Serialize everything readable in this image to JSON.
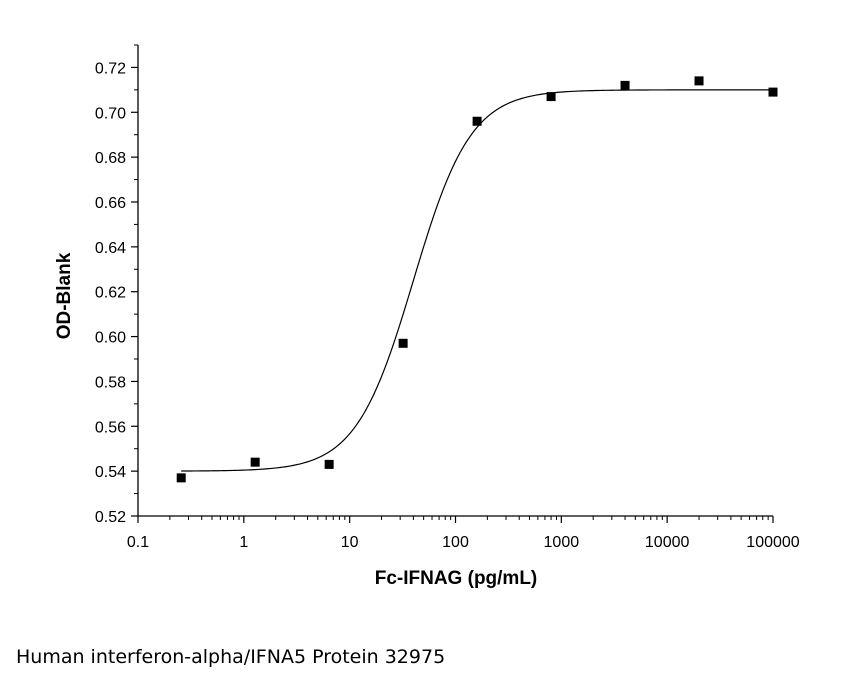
{
  "caption": "Human interferon-alpha/IFNA5 Protein 32975",
  "chart_data": {
    "type": "scatter",
    "xlabel": "Fc-IFNAG (pg/mL)",
    "ylabel": "OD-Blank",
    "x_scale": "log",
    "xlim": [
      0.1,
      100000
    ],
    "ylim": [
      0.52,
      0.73
    ],
    "x_ticks": [
      0.1,
      1,
      10,
      100,
      1000,
      10000,
      100000
    ],
    "x_tick_labels": [
      "0.1",
      "1",
      "10",
      "100",
      "1000",
      "10000",
      "100000"
    ],
    "y_ticks": [
      0.52,
      0.54,
      0.56,
      0.58,
      0.6,
      0.62,
      0.64,
      0.66,
      0.68,
      0.7,
      0.72
    ],
    "y_tick_labels": [
      "0.52",
      "0.54",
      "0.56",
      "0.58",
      "0.60",
      "0.62",
      "0.64",
      "0.66",
      "0.68",
      "0.70",
      "0.72"
    ],
    "grid": false,
    "series": [
      {
        "marker": "square",
        "color": "#000000",
        "x": [
          0.256,
          1.28,
          6.4,
          32,
          160,
          800,
          4000,
          20000,
          100000
        ],
        "y": [
          0.537,
          0.544,
          0.543,
          0.597,
          0.696,
          0.707,
          0.712,
          0.714,
          0.709
        ]
      }
    ],
    "fit_curve": {
      "kind": "4PL",
      "bottom": 0.54,
      "top": 0.71,
      "ec50": 40,
      "hill": 1.6,
      "color": "#000000"
    }
  }
}
